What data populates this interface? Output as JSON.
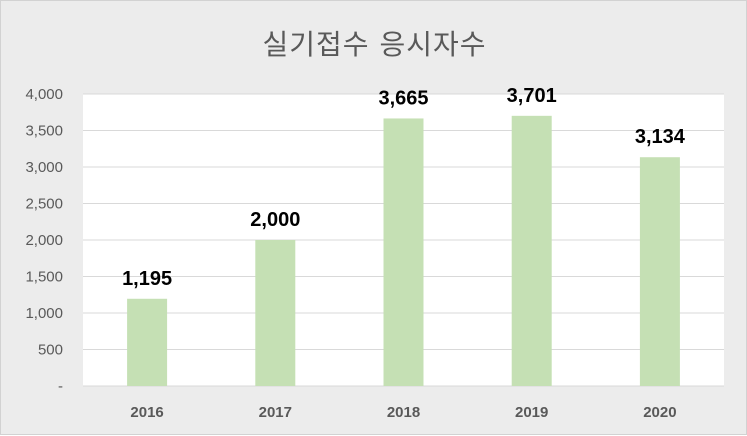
{
  "chart_data": {
    "type": "bar",
    "title": "실기접수 응시자수",
    "categories": [
      "2016",
      "2017",
      "2018",
      "2019",
      "2020"
    ],
    "values": [
      1195,
      2000,
      3665,
      3701,
      3134
    ],
    "data_labels": [
      "1,195",
      "2,000",
      "3,665",
      "3,701",
      "3,134"
    ],
    "y_ticks": [
      {
        "value": 0,
        "label": "-"
      },
      {
        "value": 500,
        "label": "500"
      },
      {
        "value": 1000,
        "label": "1,000"
      },
      {
        "value": 1500,
        "label": "1,500"
      },
      {
        "value": 2000,
        "label": "2,000"
      },
      {
        "value": 2500,
        "label": "2,500"
      },
      {
        "value": 3000,
        "label": "3,000"
      },
      {
        "value": 3500,
        "label": "3,500"
      },
      {
        "value": 4000,
        "label": "4,000"
      }
    ],
    "ylim": [
      0,
      4000
    ],
    "grid": true,
    "xlabel": "",
    "ylabel": "",
    "colors": {
      "bar": "#c5e0b4",
      "grid": "#d9d9d9",
      "plot_bg": "#ffffff",
      "frame_bg": "#ececec"
    }
  }
}
